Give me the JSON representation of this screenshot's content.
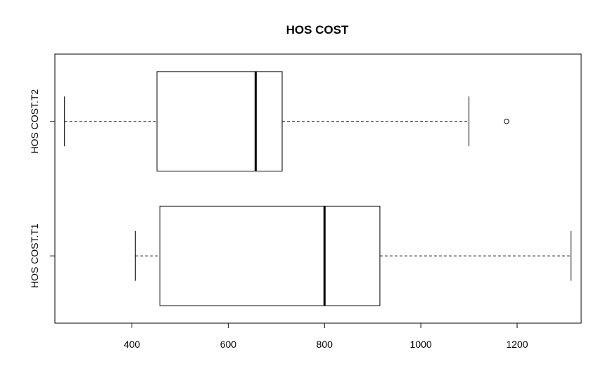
{
  "chart_data": {
    "type": "boxplot",
    "orientation": "horizontal",
    "title": "HOS COST",
    "xlabel": "",
    "ylabel": "",
    "x_ticks": [
      400,
      600,
      800,
      1000,
      1200
    ],
    "xlim": [
      240,
      1333
    ],
    "grid": false,
    "legend": "none",
    "series": [
      {
        "name": "HOS COST.T1",
        "whisker_low": 407,
        "q1": 458,
        "median": 800,
        "q3": 915,
        "whisker_high": 1312,
        "outliers": []
      },
      {
        "name": "HOS COST.T2",
        "whisker_low": 260,
        "q1": 452,
        "median": 657,
        "q3": 712,
        "whisker_high": 1100,
        "outliers": [
          1178
        ]
      }
    ]
  }
}
